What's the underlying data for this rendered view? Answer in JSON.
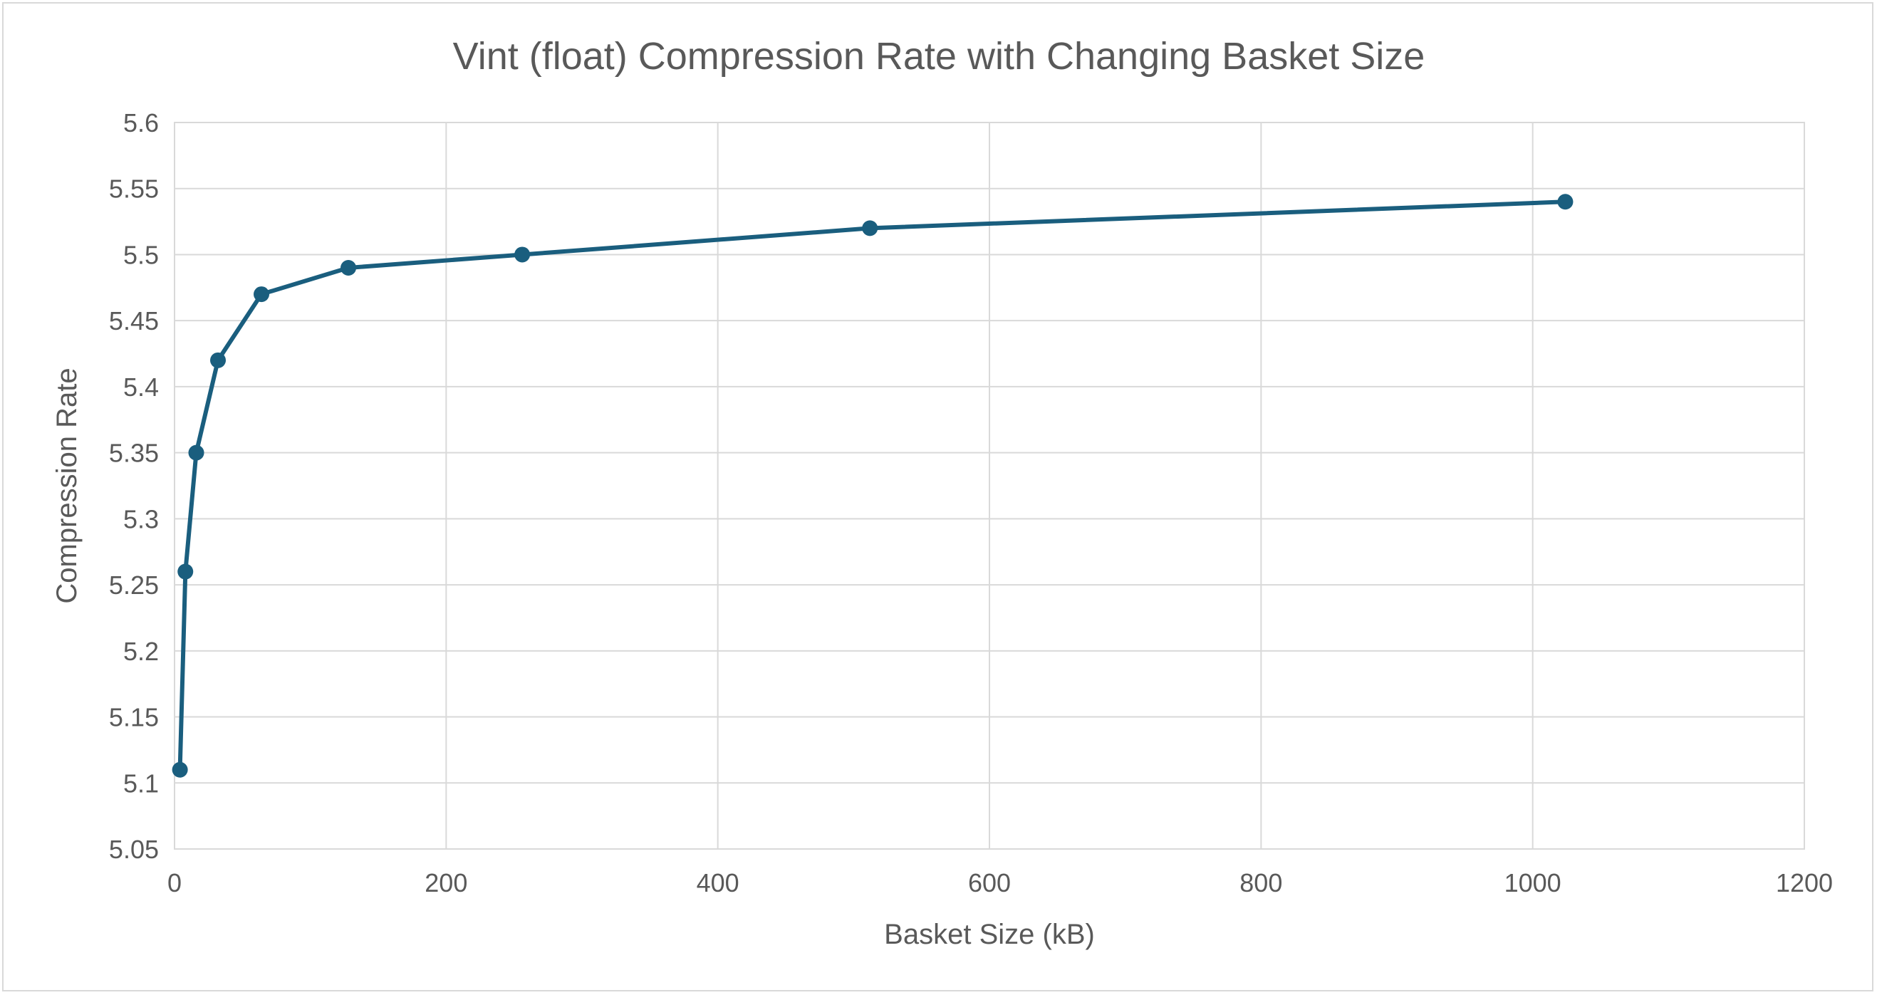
{
  "chart_data": {
    "type": "line",
    "title": "Vint (float) Compression Rate with Changing Basket Size",
    "xlabel": "Basket Size (kB)",
    "ylabel": "Compression Rate",
    "xlim": [
      0,
      1200
    ],
    "ylim": [
      5.05,
      5.6
    ],
    "x_ticks": [
      "0",
      "200",
      "400",
      "600",
      "800",
      "1000",
      "1200"
    ],
    "y_ticks": [
      "5.05",
      "5.1",
      "5.15",
      "5.2",
      "5.25",
      "5.3",
      "5.35",
      "5.4",
      "5.45",
      "5.5",
      "5.55",
      "5.6"
    ],
    "grid": true,
    "legend": "none",
    "series": [
      {
        "color": "#1a5e7e",
        "x": [
          4,
          8,
          16,
          32,
          64,
          128,
          256,
          512,
          1024
        ],
        "y": [
          5.11,
          5.26,
          5.35,
          5.42,
          5.47,
          5.49,
          5.5,
          5.52,
          5.54
        ]
      }
    ]
  }
}
